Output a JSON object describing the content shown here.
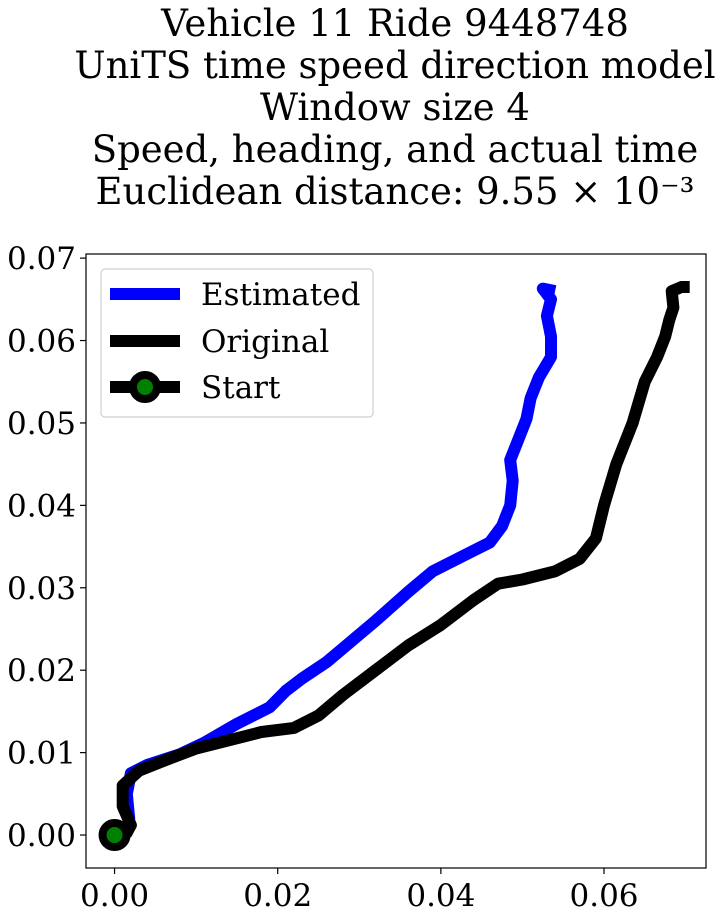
{
  "chart_data": {
    "type": "line",
    "title_lines": [
      "Vehicle 11 Ride 9448748",
      "UniTS time speed direction model",
      "Window size 4",
      "Speed, heading, and actual time",
      "Euclidean distance: 9.55 × 10⁻³"
    ],
    "xlabel": "",
    "ylabel": "",
    "xlim": [
      -0.0035,
      0.0725
    ],
    "ylim": [
      -0.004,
      0.0705
    ],
    "xticks": [
      0.0,
      0.02,
      0.04,
      0.06
    ],
    "xtick_labels": [
      "0.00",
      "0.02",
      "0.04",
      "0.06"
    ],
    "yticks": [
      0.0,
      0.01,
      0.02,
      0.03,
      0.04,
      0.05,
      0.06,
      0.07
    ],
    "ytick_labels": [
      "0.00",
      "0.01",
      "0.02",
      "0.03",
      "0.04",
      "0.05",
      "0.06",
      "0.07"
    ],
    "grid": false,
    "legend_position": "top-left",
    "series": [
      {
        "name": "Estimated",
        "color": "#0000ff",
        "points": [
          [
            0.0,
            0.0
          ],
          [
            0.0015,
            0.0003
          ],
          [
            0.0018,
            0.002
          ],
          [
            0.0015,
            0.005
          ],
          [
            0.002,
            0.0075
          ],
          [
            0.004,
            0.0085
          ],
          [
            0.008,
            0.0098
          ],
          [
            0.011,
            0.0112
          ],
          [
            0.015,
            0.0135
          ],
          [
            0.019,
            0.0155
          ],
          [
            0.021,
            0.0175
          ],
          [
            0.023,
            0.019
          ],
          [
            0.026,
            0.021
          ],
          [
            0.029,
            0.0235
          ],
          [
            0.032,
            0.026
          ],
          [
            0.036,
            0.0295
          ],
          [
            0.039,
            0.032
          ],
          [
            0.043,
            0.034
          ],
          [
            0.046,
            0.0355
          ],
          [
            0.0475,
            0.0375
          ],
          [
            0.0485,
            0.04
          ],
          [
            0.0488,
            0.043
          ],
          [
            0.0485,
            0.0455
          ],
          [
            0.0495,
            0.048
          ],
          [
            0.0505,
            0.0505
          ],
          [
            0.051,
            0.053
          ],
          [
            0.052,
            0.0555
          ],
          [
            0.0535,
            0.058
          ],
          [
            0.0535,
            0.0605
          ],
          [
            0.053,
            0.063
          ],
          [
            0.0535,
            0.065
          ],
          [
            0.0525,
            0.0663
          ],
          [
            0.054,
            0.066
          ]
        ]
      },
      {
        "name": "Original",
        "color": "#000000",
        "points": [
          [
            0.0,
            0.0
          ],
          [
            0.0015,
            0.0003
          ],
          [
            0.002,
            0.0012
          ],
          [
            0.001,
            0.0035
          ],
          [
            0.001,
            0.006
          ],
          [
            0.003,
            0.0078
          ],
          [
            0.006,
            0.009
          ],
          [
            0.01,
            0.0105
          ],
          [
            0.014,
            0.0115
          ],
          [
            0.018,
            0.0125
          ],
          [
            0.022,
            0.013
          ],
          [
            0.025,
            0.0145
          ],
          [
            0.028,
            0.017
          ],
          [
            0.032,
            0.02
          ],
          [
            0.036,
            0.023
          ],
          [
            0.04,
            0.0255
          ],
          [
            0.044,
            0.0285
          ],
          [
            0.047,
            0.0305
          ],
          [
            0.05,
            0.031
          ],
          [
            0.054,
            0.032
          ],
          [
            0.057,
            0.0335
          ],
          [
            0.059,
            0.036
          ],
          [
            0.06,
            0.04
          ],
          [
            0.0615,
            0.045
          ],
          [
            0.0635,
            0.05
          ],
          [
            0.065,
            0.055
          ],
          [
            0.0665,
            0.058
          ],
          [
            0.0675,
            0.0605
          ],
          [
            0.068,
            0.0625
          ],
          [
            0.0685,
            0.064
          ],
          [
            0.0683,
            0.066
          ],
          [
            0.0695,
            0.0665
          ],
          [
            0.0705,
            0.0665
          ]
        ]
      }
    ],
    "start_marker": {
      "name": "Start",
      "x": 0.0,
      "y": 0.0,
      "edge_color": "#000000",
      "fill_color": "#008000"
    }
  }
}
